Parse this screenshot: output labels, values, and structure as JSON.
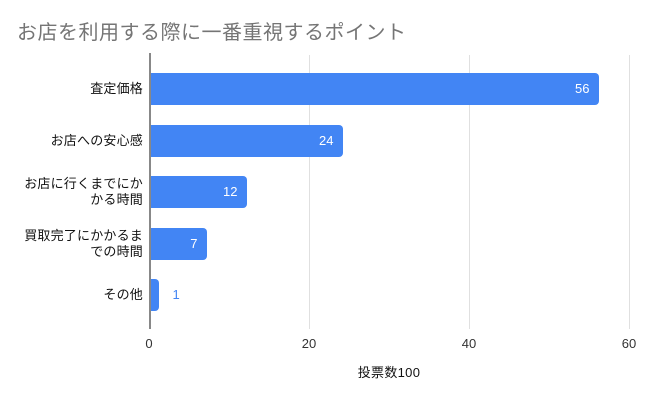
{
  "chart_data": {
    "type": "bar",
    "orientation": "horizontal",
    "title": "お店を利用する際に一番重視するポイント",
    "categories": [
      "査定価格",
      "お店への安心感",
      "お店に行くまでにかかる時間",
      "買取完了にかかるまでの時間",
      "その他"
    ],
    "category_label_lines": [
      [
        "査定価格"
      ],
      [
        "お店への安心感"
      ],
      [
        "お店に行くまでにか",
        "かる時間"
      ],
      [
        "買取完了にかかるま",
        "での時間"
      ],
      [
        "その他"
      ]
    ],
    "values": [
      56,
      24,
      12,
      7,
      1
    ],
    "value_labels": [
      "56",
      "24",
      "12",
      "7",
      "1"
    ],
    "xlabel": "投票数100",
    "xticks": [
      "0",
      "20",
      "40",
      "60"
    ],
    "xtick_values": [
      0,
      20,
      40,
      60
    ],
    "xlim": [
      0,
      60
    ],
    "grid": true,
    "legend": "none",
    "colors": {
      "bar": "#4285f4",
      "title": "#757575",
      "gridline": "#e0e0e0",
      "axis_line": "#888888",
      "value_inside": "#ffffff",
      "value_outside": "#4285f4",
      "category_label": "#111111",
      "tick_label": "#333333",
      "axis_title": "#111111",
      "background": "#ffffff"
    }
  }
}
